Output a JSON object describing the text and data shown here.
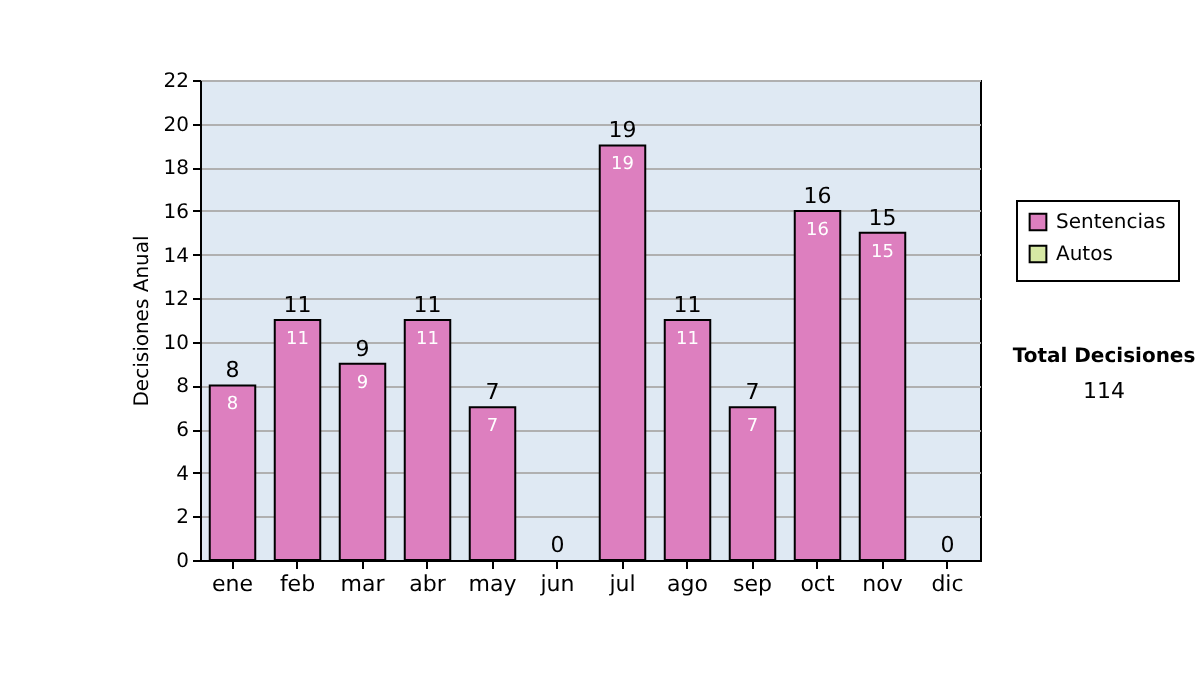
{
  "chart_data": {
    "type": "bar",
    "ylabel": "Decisiones Anual",
    "stacked": true,
    "categories": [
      "ene",
      "feb",
      "mar",
      "abr",
      "may",
      "jun",
      "jul",
      "ago",
      "sep",
      "oct",
      "nov",
      "dic"
    ],
    "series": [
      {
        "name": "Sentencias",
        "color": "#dd7fbf",
        "values": [
          8,
          11,
          9,
          11,
          7,
          0,
          19,
          11,
          7,
          16,
          15,
          0
        ],
        "value_labels": [
          "8",
          "11",
          "9",
          "11",
          "7",
          null,
          "19",
          "11",
          "7",
          "16",
          "15",
          null
        ]
      },
      {
        "name": "Autos",
        "color": "#d6e8a4",
        "values": [
          0,
          0,
          0,
          0,
          0,
          0,
          0,
          0,
          0,
          0,
          0,
          0
        ]
      }
    ],
    "totals": [
      "8",
      "11",
      "9",
      "11",
      "7",
      "0",
      "19",
      "11",
      "7",
      "16",
      "15",
      "0"
    ],
    "ylim": [
      0,
      22
    ],
    "yticks": [
      0,
      2,
      4,
      6,
      8,
      10,
      12,
      14,
      16,
      18,
      20,
      22
    ],
    "grid": "y",
    "legend": "right",
    "annotations": [
      "Total Decisiones",
      "114"
    ]
  }
}
